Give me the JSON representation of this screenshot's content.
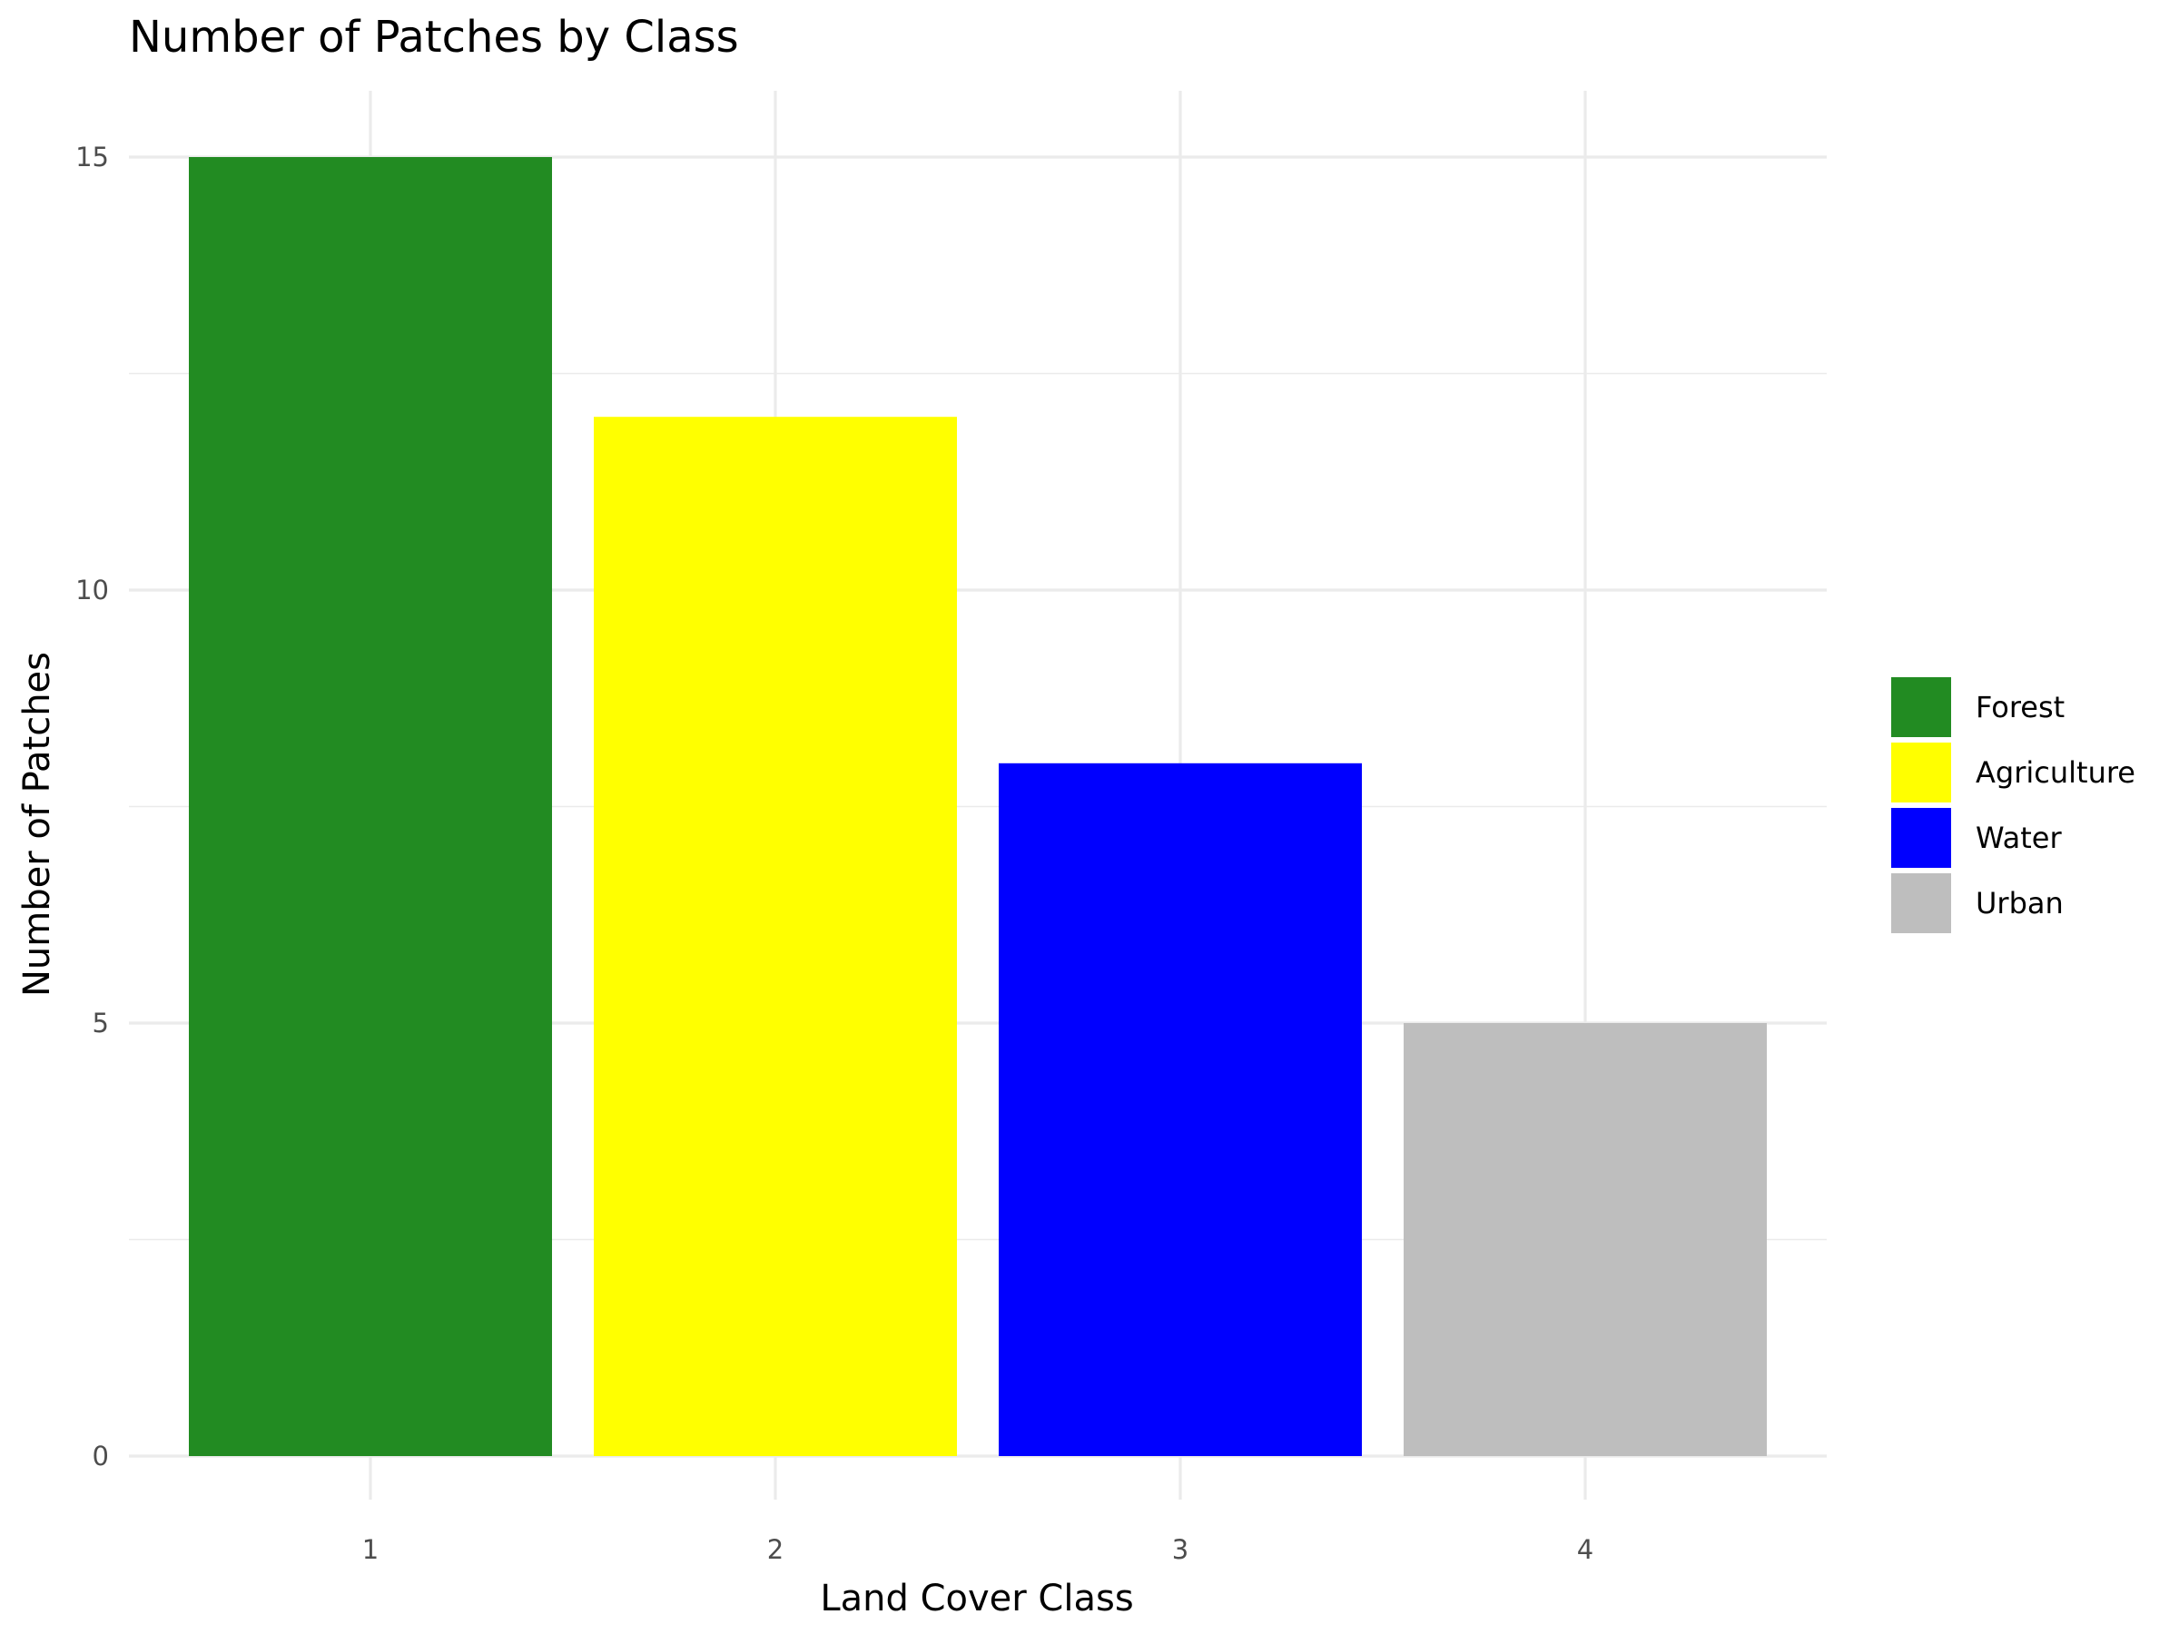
{
  "chart_data": {
    "type": "bar",
    "title": "Number of Patches by Class",
    "xlabel": "Land Cover Class",
    "ylabel": "Number of Patches",
    "categories": [
      "1",
      "2",
      "3",
      "4"
    ],
    "values": [
      15,
      12,
      8,
      5
    ],
    "bar_colors": [
      "#228B22",
      "#FFFF00",
      "#0000FF",
      "#BEBEBE"
    ],
    "ylim": [
      0,
      15.75
    ],
    "y_ticks": [
      0,
      5,
      10,
      15
    ],
    "grid": true,
    "legend": {
      "placement": "right",
      "entries": [
        {
          "label": "Forest",
          "color": "#228B22"
        },
        {
          "label": "Agriculture",
          "color": "#FFFF00"
        },
        {
          "label": "Water",
          "color": "#0000FF"
        },
        {
          "label": "Urban",
          "color": "#BEBEBE"
        }
      ]
    }
  }
}
